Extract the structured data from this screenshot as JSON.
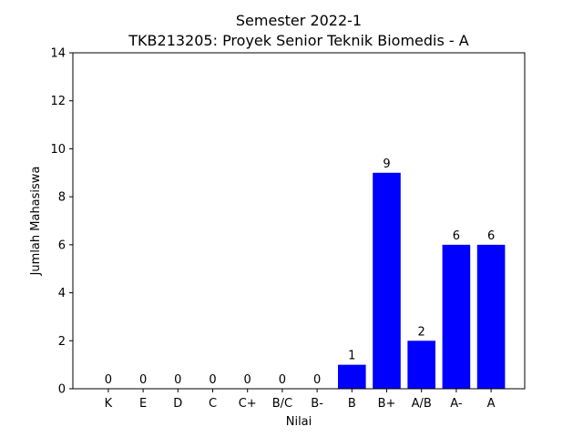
{
  "chart_data": {
    "type": "bar",
    "title_line1": "Semester 2022-1",
    "title_line2": "TKB213205: Proyek Senior Teknik Biomedis - A",
    "xlabel": "Nilai",
    "ylabel": "Jumlah Mahasiswa",
    "categories": [
      "K",
      "E",
      "D",
      "C",
      "C+",
      "B/C",
      "B-",
      "B",
      "B+",
      "A/B",
      "A-",
      "A"
    ],
    "values": [
      0,
      0,
      0,
      0,
      0,
      0,
      0,
      1,
      9,
      2,
      6,
      6
    ],
    "ylim": [
      0,
      14
    ],
    "yticks": [
      0,
      2,
      4,
      6,
      8,
      10,
      12,
      14
    ],
    "bar_color": "#0000ff",
    "grid": false
  }
}
